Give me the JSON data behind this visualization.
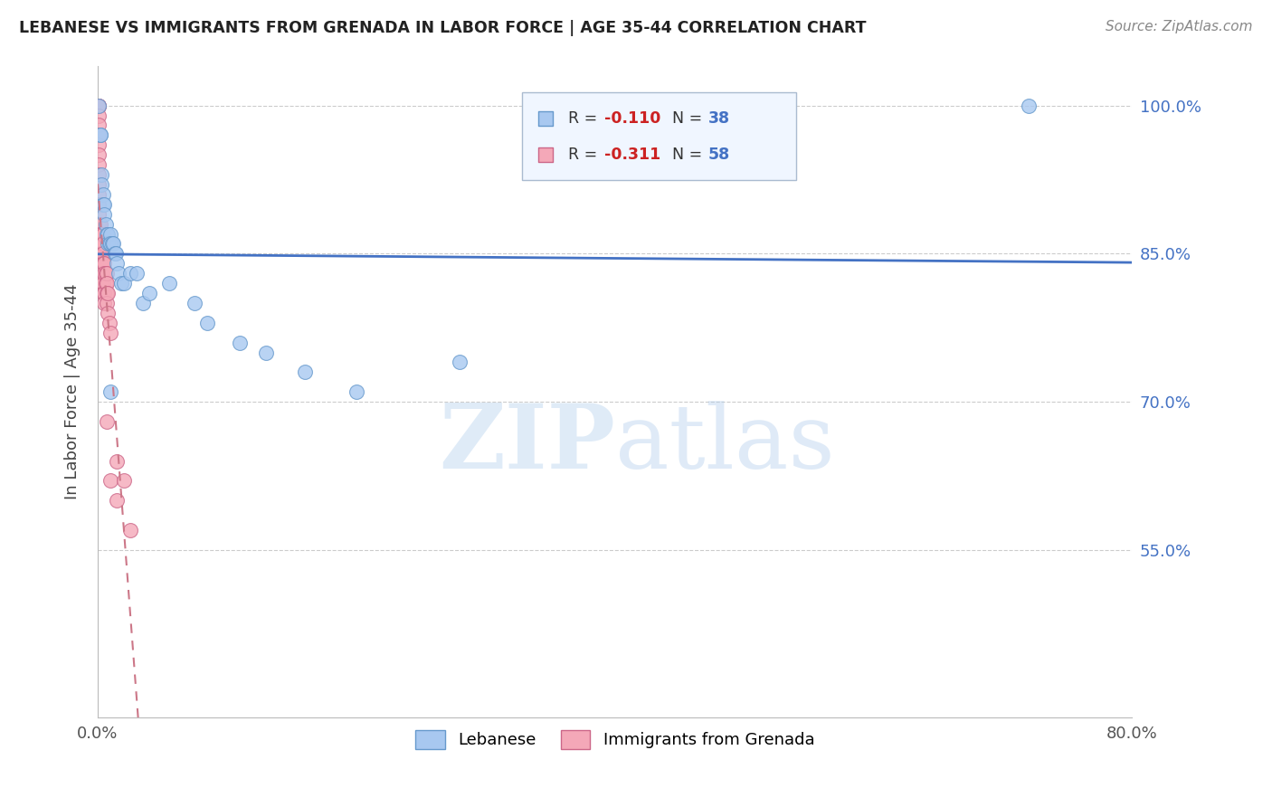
{
  "title": "LEBANESE VS IMMIGRANTS FROM GRENADA IN LABOR FORCE | AGE 35-44 CORRELATION CHART",
  "source": "Source: ZipAtlas.com",
  "ylabel": "In Labor Force | Age 35-44",
  "ytick_vals": [
    0.55,
    0.7,
    0.85,
    1.0
  ],
  "ytick_labels": [
    "55.0%",
    "70.0%",
    "85.0%",
    "100.0%"
  ],
  "xlim": [
    0.0,
    0.8
  ],
  "ylim": [
    0.38,
    1.04
  ],
  "blue_color": "#a8c8f0",
  "pink_color": "#f4a8b8",
  "blue_edge": "#6699cc",
  "pink_edge": "#cc6688",
  "regression_blue": "#4472c4",
  "regression_pink": "#cc7788",
  "grid_color": "#cccccc",
  "legend_box_color": "#e8f0f8",
  "legend_box_edge": "#aabbcc",
  "blue_scatter_x": [
    0.001,
    0.002,
    0.002,
    0.003,
    0.003,
    0.004,
    0.004,
    0.005,
    0.005,
    0.006,
    0.007,
    0.008,
    0.008,
    0.009,
    0.01,
    0.01,
    0.011,
    0.012,
    0.013,
    0.014,
    0.015,
    0.016,
    0.018,
    0.02,
    0.025,
    0.03,
    0.035,
    0.04,
    0.055,
    0.075,
    0.085,
    0.11,
    0.13,
    0.16,
    0.2,
    0.28,
    0.72,
    0.01
  ],
  "blue_scatter_y": [
    1.0,
    0.97,
    0.97,
    0.93,
    0.92,
    0.91,
    0.9,
    0.9,
    0.89,
    0.88,
    0.87,
    0.87,
    0.86,
    0.86,
    0.87,
    0.86,
    0.86,
    0.86,
    0.85,
    0.85,
    0.84,
    0.83,
    0.82,
    0.82,
    0.83,
    0.83,
    0.8,
    0.81,
    0.82,
    0.8,
    0.78,
    0.76,
    0.75,
    0.73,
    0.71,
    0.74,
    1.0,
    0.71
  ],
  "pink_scatter_x": [
    0.001,
    0.001,
    0.001,
    0.001,
    0.001,
    0.001,
    0.001,
    0.001,
    0.001,
    0.001,
    0.001,
    0.001,
    0.001,
    0.001,
    0.001,
    0.001,
    0.001,
    0.001,
    0.001,
    0.001,
    0.002,
    0.002,
    0.002,
    0.002,
    0.002,
    0.002,
    0.003,
    0.003,
    0.003,
    0.003,
    0.003,
    0.003,
    0.004,
    0.004,
    0.004,
    0.004,
    0.004,
    0.004,
    0.005,
    0.005,
    0.005,
    0.005,
    0.006,
    0.006,
    0.007,
    0.007,
    0.007,
    0.007,
    0.007,
    0.008,
    0.008,
    0.009,
    0.01,
    0.01,
    0.015,
    0.015,
    0.02,
    0.025
  ],
  "pink_scatter_y": [
    1.0,
    1.0,
    1.0,
    0.99,
    0.98,
    0.97,
    0.96,
    0.95,
    0.94,
    0.93,
    0.92,
    0.91,
    0.9,
    0.89,
    0.88,
    0.87,
    0.86,
    0.86,
    0.86,
    0.85,
    0.88,
    0.87,
    0.87,
    0.86,
    0.85,
    0.84,
    0.87,
    0.86,
    0.85,
    0.84,
    0.83,
    0.82,
    0.87,
    0.86,
    0.85,
    0.84,
    0.82,
    0.81,
    0.84,
    0.83,
    0.81,
    0.8,
    0.83,
    0.82,
    0.83,
    0.82,
    0.81,
    0.8,
    0.68,
    0.81,
    0.79,
    0.78,
    0.77,
    0.62,
    0.64,
    0.6,
    0.62,
    0.57
  ],
  "watermark_zip": "ZIP",
  "watermark_atlas": "atlas",
  "R_blue": -0.11,
  "N_blue": 38,
  "R_pink": -0.311,
  "N_pink": 58,
  "axis_text_color": "#4472c4",
  "title_color": "#222222"
}
